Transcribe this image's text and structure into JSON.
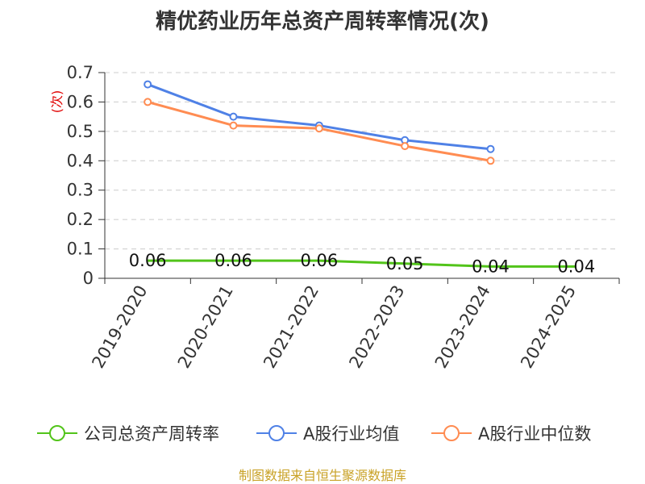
{
  "chart_data": {
    "type": "line",
    "title": "精优药业历年总资产周转率情况(次)",
    "ylabel": "(次)",
    "xlabel": "",
    "ylim": [
      0,
      0.7
    ],
    "yticks": [
      "0",
      "0.1",
      "0.2",
      "0.3",
      "0.4",
      "0.5",
      "0.6",
      "0.7"
    ],
    "grid": true,
    "legend_position": "bottom",
    "categories": [
      "2019-2020",
      "2020-2021",
      "2021-2022",
      "2022-2023",
      "2023-2024",
      "2024-2025"
    ],
    "series": [
      {
        "name": "公司总资产周转率",
        "color": "#52c41a",
        "values": [
          0.06,
          0.06,
          0.06,
          0.05,
          0.04,
          0.04
        ],
        "data_labels": [
          "0.06",
          "0.06",
          "0.06",
          "0.05",
          "0.04",
          "0.04"
        ],
        "markers": false
      },
      {
        "name": "A股行业均值",
        "color": "#4f81e6",
        "values": [
          0.66,
          0.55,
          0.52,
          0.47,
          0.44,
          null
        ],
        "markers": true
      },
      {
        "name": "A股行业中位数",
        "color": "#ff8c52",
        "values": [
          0.6,
          0.52,
          0.51,
          0.45,
          0.4,
          null
        ],
        "markers": true
      }
    ]
  },
  "source": "制图数据来自恒生聚源数据库"
}
